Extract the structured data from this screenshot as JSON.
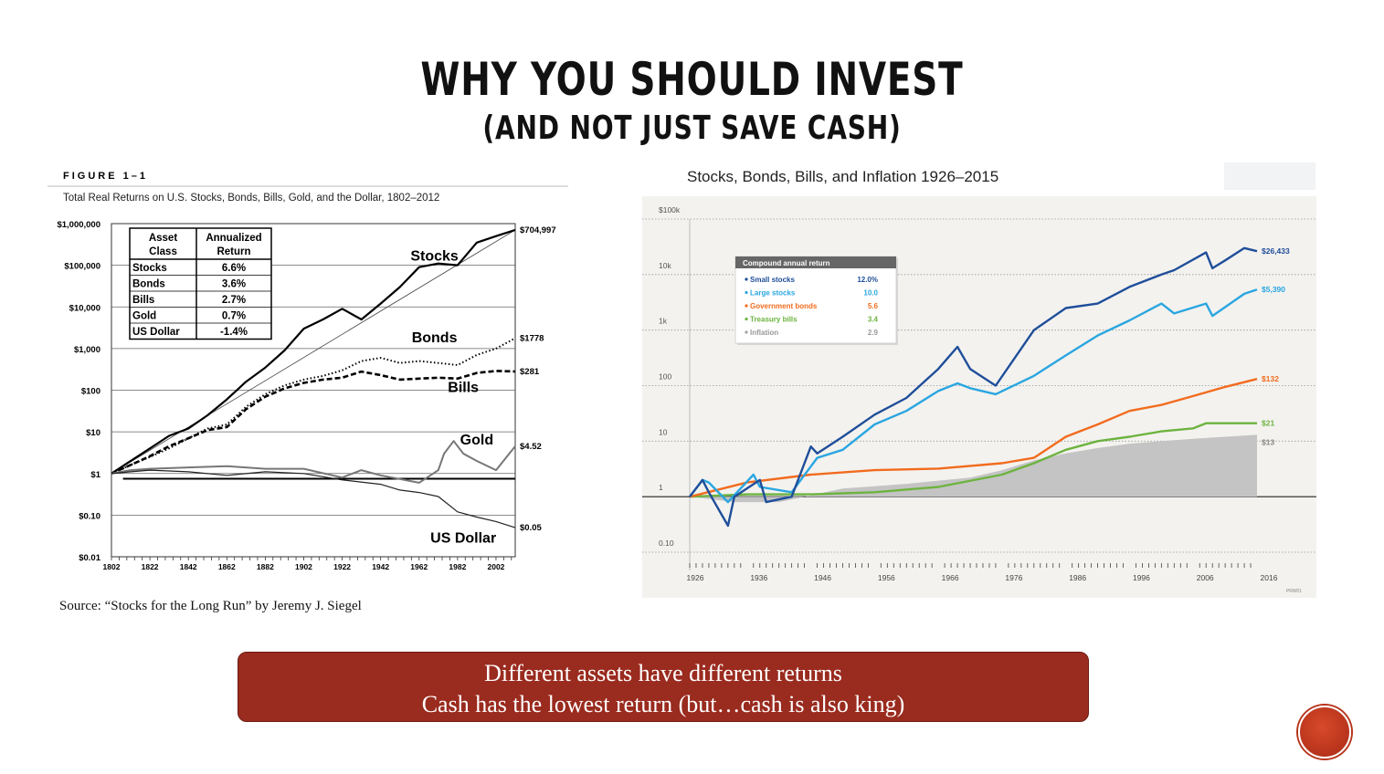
{
  "slide": {
    "title_line1": "WHY YOU SHOULD INVEST",
    "title_line2": "(AND NOT JUST SAVE CASH)",
    "source": "Source: “Stocks for the Long Run” by Jeremy J. Siegel",
    "callout_line1": "Different assets have different returns",
    "callout_line2": "Cash has the lowest return (but…cash is also king)",
    "accent_color": "#9a2b1f"
  },
  "chart_data": [
    {
      "type": "line",
      "figure_label": "FIGURE 1–1",
      "title": "Total Real Returns on U.S. Stocks, Bonds, Bills, Gold, and the Dollar, 1802–2012",
      "y_scale": "log",
      "ylim": [
        0.01,
        1000000
      ],
      "xlim": [
        1802,
        2012
      ],
      "yticks": [
        "$0.01",
        "$0.10",
        "$1",
        "$10",
        "$100",
        "$1,000",
        "$10,000",
        "$100,000",
        "$1,000,000"
      ],
      "ytick_values": [
        0.01,
        0.1,
        1,
        10,
        100,
        1000,
        10000,
        100000,
        1000000
      ],
      "xticks": [
        "1802",
        "1822",
        "1842",
        "1862",
        "1882",
        "1902",
        "1922",
        "1942",
        "1962",
        "1982",
        "2002"
      ],
      "table": {
        "headers": [
          "Asset Class",
          "Annualized Return"
        ],
        "rows": [
          [
            "Stocks",
            "6.6%"
          ],
          [
            "Bonds",
            "3.6%"
          ],
          [
            "Bills",
            "2.7%"
          ],
          [
            "Gold",
            "0.7%"
          ],
          [
            "US Dollar",
            "-1.4%"
          ]
        ]
      },
      "series": [
        {
          "name": "Stocks",
          "end_label": "$704,997",
          "x": [
            1802,
            1812,
            1822,
            1832,
            1842,
            1852,
            1862,
            1872,
            1882,
            1892,
            1902,
            1912,
            1922,
            1932,
            1942,
            1952,
            1962,
            1972,
            1982,
            1992,
            2002,
            2012
          ],
          "y": [
            1,
            2,
            4,
            8,
            12,
            25,
            60,
            160,
            350,
            900,
            3000,
            5000,
            9000,
            5000,
            12000,
            30000,
            90000,
            110000,
            100000,
            350000,
            500000,
            704997
          ]
        },
        {
          "name": "Bonds",
          "end_label": "$1778",
          "x": [
            1802,
            1812,
            1822,
            1832,
            1842,
            1852,
            1862,
            1872,
            1882,
            1892,
            1902,
            1912,
            1922,
            1932,
            1942,
            1952,
            1962,
            1972,
            1982,
            1992,
            2002,
            2012
          ],
          "y": [
            1,
            1.6,
            2.5,
            4,
            7,
            12,
            15,
            40,
            80,
            130,
            180,
            220,
            300,
            500,
            600,
            450,
            500,
            450,
            400,
            700,
            1000,
            1778
          ]
        },
        {
          "name": "Bills",
          "end_label": "$281",
          "x": [
            1802,
            1812,
            1822,
            1832,
            1842,
            1852,
            1862,
            1872,
            1882,
            1892,
            1902,
            1912,
            1922,
            1932,
            1942,
            1952,
            1962,
            1972,
            1982,
            1992,
            2002,
            2012
          ],
          "y": [
            1,
            1.6,
            2.6,
            4.5,
            7,
            11,
            13,
            35,
            70,
            110,
            150,
            180,
            200,
            280,
            230,
            180,
            190,
            200,
            190,
            260,
            290,
            281
          ]
        },
        {
          "name": "Gold",
          "end_label": "$4.52",
          "x": [
            1802,
            1812,
            1822,
            1842,
            1862,
            1882,
            1902,
            1922,
            1932,
            1942,
            1962,
            1972,
            1975,
            1980,
            1985,
            1992,
            2002,
            2012
          ],
          "y": [
            1,
            1.2,
            1.3,
            1.4,
            1.5,
            1.3,
            1.3,
            0.8,
            1.2,
            0.9,
            0.6,
            1.2,
            3,
            6,
            3,
            2,
            1.2,
            4.52
          ]
        },
        {
          "name": "US Dollar",
          "end_label": "$0.05",
          "x": [
            1802,
            1812,
            1822,
            1842,
            1862,
            1882,
            1902,
            1922,
            1942,
            1952,
            1962,
            1972,
            1982,
            1992,
            2002,
            2012
          ],
          "y": [
            1,
            1.1,
            1.2,
            1.1,
            0.9,
            1.1,
            1,
            0.7,
            0.55,
            0.4,
            0.35,
            0.28,
            0.12,
            0.09,
            0.07,
            0.05
          ]
        }
      ]
    },
    {
      "type": "area",
      "title": "Stocks, Bonds, Bills, and Inflation 1926–2015",
      "y_scale": "log",
      "ylim": [
        0.1,
        100000
      ],
      "xlim": [
        1926,
        2016
      ],
      "yticks": [
        "0.10",
        "1",
        "10",
        "100",
        "1k",
        "10k",
        "$100k"
      ],
      "ytick_values": [
        0.1,
        1,
        10,
        100,
        1000,
        10000,
        100000
      ],
      "xticks": [
        "1926",
        "1936",
        "1946",
        "1956",
        "1966",
        "1976",
        "1986",
        "1996",
        "2006",
        "2016"
      ],
      "footnote": "PRW01",
      "legend": {
        "title": "Compound annual return",
        "placement": "top-left",
        "entries": [
          {
            "name": "Small stocks",
            "value": "12.0%",
            "color": "#1f4e9a"
          },
          {
            "name": "Large stocks",
            "value": "10.0",
            "color": "#2aa6e0"
          },
          {
            "name": "Government bonds",
            "value": "5.6",
            "color": "#f26b1d"
          },
          {
            "name": "Treasury bills",
            "value": "3.4",
            "color": "#6db33f"
          },
          {
            "name": "Inflation",
            "value": "2.9",
            "color": "#a0a0a0"
          }
        ]
      },
      "series": [
        {
          "name": "Small stocks",
          "end_label": "$26,433",
          "color": "#1f4e9a",
          "x": [
            1926,
            1928,
            1929,
            1932,
            1933,
            1937,
            1938,
            1942,
            1945,
            1946,
            1950,
            1955,
            1960,
            1965,
            1968,
            1970,
            1974,
            1980,
            1985,
            1990,
            1995,
            2000,
            2002,
            2007,
            2008,
            2010,
            2013,
            2015
          ],
          "y": [
            1,
            2,
            1.2,
            0.3,
            1,
            2,
            0.8,
            1,
            8,
            6,
            12,
            30,
            60,
            200,
            500,
            200,
            100,
            1000,
            2500,
            3000,
            6000,
            10000,
            12000,
            25000,
            13000,
            18000,
            30000,
            26433
          ]
        },
        {
          "name": "Large stocks",
          "end_label": "$5,390",
          "color": "#2aa6e0",
          "x": [
            1926,
            1928,
            1929,
            1932,
            1936,
            1937,
            1942,
            1946,
            1950,
            1955,
            1960,
            1965,
            1968,
            1970,
            1974,
            1980,
            1985,
            1990,
            1995,
            2000,
            2002,
            2007,
            2008,
            2013,
            2015
          ],
          "y": [
            1,
            2,
            1.8,
            0.8,
            2.5,
            1.5,
            1.2,
            5,
            7,
            20,
            35,
            80,
            110,
            90,
            70,
            150,
            350,
            800,
            1500,
            3000,
            2000,
            3000,
            1800,
            4500,
            5390
          ]
        },
        {
          "name": "Government bonds",
          "end_label": "$132",
          "color": "#f26b1d",
          "x": [
            1926,
            1935,
            1945,
            1955,
            1965,
            1975,
            1980,
            1985,
            1990,
            1995,
            2000,
            2005,
            2010,
            2015
          ],
          "y": [
            1,
            1.8,
            2.5,
            3,
            3.2,
            4,
            5,
            12,
            20,
            35,
            45,
            65,
            95,
            132
          ]
        },
        {
          "name": "Treasury bills",
          "end_label": "$21",
          "color": "#6db33f",
          "x": [
            1926,
            1935,
            1945,
            1955,
            1965,
            1975,
            1980,
            1985,
            1990,
            1995,
            2000,
            2005,
            2007,
            2010,
            2015
          ],
          "y": [
            1,
            1.1,
            1.1,
            1.2,
            1.5,
            2.5,
            4,
            7,
            10,
            12,
            15,
            17,
            21,
            21,
            21
          ]
        },
        {
          "name": "Inflation",
          "end_label": "$13",
          "color": "#c0c0c0",
          "x": [
            1926,
            1933,
            1940,
            1950,
            1960,
            1970,
            1975,
            1980,
            1985,
            1990,
            1995,
            2000,
            2005,
            2010,
            2015
          ],
          "y": [
            1,
            0.8,
            0.8,
            1.4,
            1.7,
            2.2,
            3,
            4.5,
            6,
            7.5,
            9,
            10,
            11,
            12,
            13
          ]
        }
      ]
    }
  ]
}
